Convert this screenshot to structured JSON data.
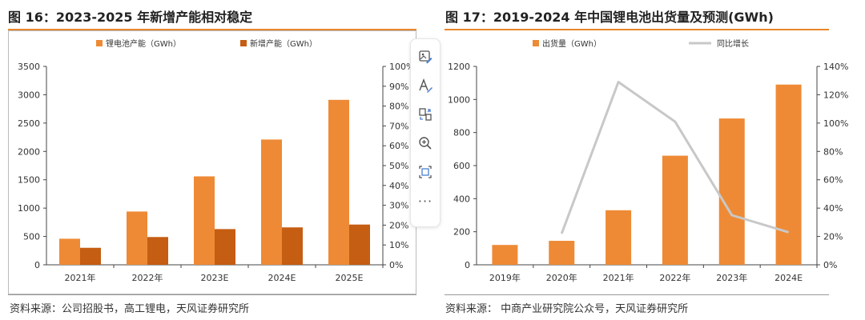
{
  "left_figure": {
    "title": "图 16：2023-2025 年新增产能相对稳定",
    "source": "资料来源：公司招股书，高工锂电，天风证券研究所"
  },
  "right_figure": {
    "title": "图 17：2019-2024 年中国锂电池出货量及预测(GWh)",
    "source": "资料来源：  中商产业研究院公众号，天风证券研究所"
  },
  "toolbar": {
    "icons": [
      "image-edit-icon",
      "text-edit-icon",
      "convert-icon",
      "zoom-in-icon",
      "screenshot-icon",
      "more-icon"
    ],
    "more_label": "···"
  },
  "colors": {
    "bar_primary": "#ee8a35",
    "bar_secondary": "#c55d13",
    "line": "#c8c8c8",
    "accent_rule": "#e8872b"
  },
  "chart_data": [
    {
      "type": "bar",
      "categories": [
        "2021年",
        "2022年",
        "2023E",
        "2024E",
        "2025E"
      ],
      "series": [
        {
          "name": "锂电池产能（GWh）",
          "values": [
            460,
            940,
            1560,
            2210,
            2910
          ]
        },
        {
          "name": "新增产能（GWh）",
          "values": [
            300,
            490,
            630,
            660,
            710
          ]
        }
      ],
      "ylim": [
        0,
        3500
      ],
      "yticks": [
        "0",
        "500",
        "1000",
        "1500",
        "2000",
        "2500",
        "3000",
        "3500"
      ],
      "y2lim": [
        0,
        100
      ],
      "y2ticks": [
        "0%",
        "10%",
        "20%",
        "30%",
        "40%",
        "50%",
        "60%",
        "70%",
        "80%",
        "90%",
        "100%"
      ],
      "legend_position": "top-center"
    },
    {
      "type": "bar",
      "categories": [
        "2019年",
        "2020年",
        "2021年",
        "2022年",
        "2023年",
        "2024E"
      ],
      "series": [
        {
          "name": "出货量（GWh）",
          "type": "bar",
          "axis": "left",
          "values": [
            120,
            145,
            330,
            660,
            885,
            1090
          ]
        },
        {
          "name": "同比增长",
          "type": "line",
          "axis": "right",
          "values": [
            null,
            22,
            129,
            101,
            35,
            23
          ]
        }
      ],
      "ylim": [
        0,
        1200
      ],
      "yticks": [
        "0",
        "200",
        "400",
        "600",
        "800",
        "1000",
        "1200"
      ],
      "y2lim": [
        0,
        140
      ],
      "y2ticks": [
        "0%",
        "20%",
        "40%",
        "60%",
        "80%",
        "100%",
        "120%",
        "140%"
      ],
      "legend_position": "top-center"
    }
  ]
}
